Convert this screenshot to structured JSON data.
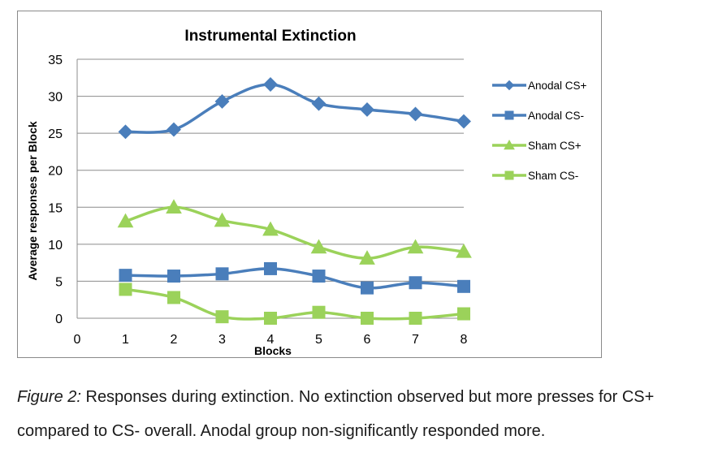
{
  "chart_data": {
    "type": "line",
    "title": "Instrumental Extinction",
    "xlabel": "Blocks",
    "ylabel": "Average responses per Block",
    "x_ticks": [
      0,
      1,
      2,
      3,
      4,
      5,
      6,
      7,
      8
    ],
    "y_ticks": [
      0,
      5,
      10,
      15,
      20,
      25,
      30,
      35
    ],
    "xlim": [
      0,
      8
    ],
    "ylim": [
      0,
      35
    ],
    "grid": "horizontal",
    "legend_position": "right",
    "x": [
      1,
      2,
      3,
      4,
      5,
      6,
      7,
      8
    ],
    "series": [
      {
        "name": "Anodal CS+",
        "marker": "diamond",
        "color": "#4a7ebb",
        "values": [
          25.2,
          25.5,
          29.3,
          31.6,
          29.0,
          28.2,
          27.6,
          26.6
        ]
      },
      {
        "name": "Anodal CS-",
        "marker": "square",
        "color": "#4a7ebb",
        "values": [
          5.8,
          5.7,
          6.0,
          6.7,
          5.7,
          4.1,
          4.8,
          4.3
        ]
      },
      {
        "name": "Sham CS+",
        "marker": "triangle",
        "color": "#9bd25a",
        "values": [
          13.1,
          15.0,
          13.2,
          12.0,
          9.6,
          8.1,
          9.6,
          9.0
        ]
      },
      {
        "name": "Sham CS-",
        "marker": "square",
        "color": "#9bd25a",
        "values": [
          3.9,
          2.8,
          0.2,
          0.0,
          0.8,
          0.0,
          0.0,
          0.6
        ]
      }
    ]
  },
  "caption": {
    "lead": "Figure 2:",
    "line1_rest": " Responses during extinction. No extinction observed but more presses for CS+",
    "line2": "compared to CS- overall. Anodal group non-significantly responded more."
  }
}
